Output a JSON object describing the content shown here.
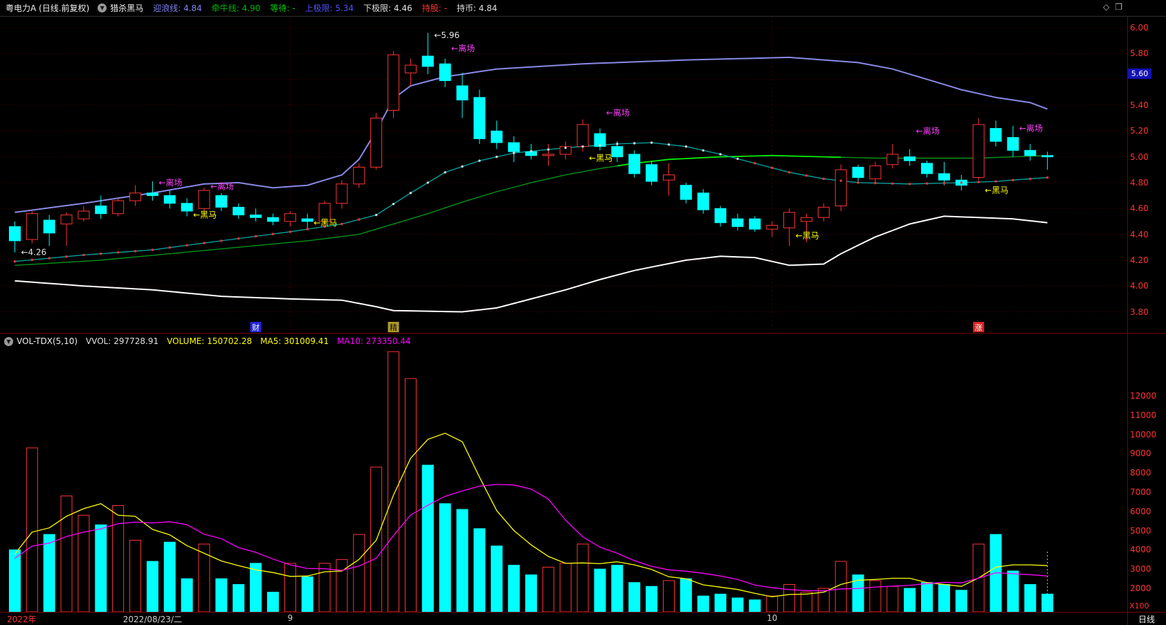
{
  "header": {
    "title": "粤电力A (日线.前复权)",
    "indicator": "猎杀黑马",
    "fields": [
      {
        "label": "迎浪线:",
        "value": "4.84",
        "color": "#8181f7"
      },
      {
        "label": "牵牛线:",
        "value": "4.90",
        "color": "#00b400"
      },
      {
        "label": "等待:",
        "value": "-",
        "color": "#00d000"
      },
      {
        "label": "上极限:",
        "value": "5.34",
        "color": "#5050ff"
      },
      {
        "label": "下极限:",
        "value": "4.46",
        "color": "#e0e0e0"
      },
      {
        "label": "持股:",
        "value": "-",
        "color": "#ff3434"
      },
      {
        "label": "持币:",
        "value": "4.84",
        "color": "#e0e0e0"
      }
    ],
    "window_icons": [
      "◇",
      "❐"
    ]
  },
  "main_chart": {
    "badge": "5.60",
    "price_ticks": [
      "6.00",
      "5.80",
      "5.60",
      "5.40",
      "5.20",
      "5.00",
      "4.80",
      "4.60",
      "4.40",
      "4.20",
      "4.00",
      "3.80"
    ]
  },
  "volume": {
    "label": "VOL-TDX(5,10)",
    "unit": "X100",
    "fields": [
      {
        "label": "VVOL:",
        "value": "297728.91",
        "color": "#e0e0e0"
      },
      {
        "label": "VOLUME:",
        "value": "150702.28",
        "color": "#ffff00"
      },
      {
        "label": "MA5:",
        "value": "301009.41",
        "color": "#ffff00"
      },
      {
        "label": "MA10:",
        "value": "273350.44",
        "color": "#ff00ff"
      }
    ],
    "volume_ticks": [
      "12000",
      "11000",
      "10000",
      "9000",
      "8000",
      "7000",
      "6000",
      "5000",
      "4000",
      "3000",
      "2000"
    ]
  },
  "bottom": {
    "date_labels": [
      {
        "text": "2022年",
        "i": 1,
        "color": "#ff3434",
        "align": "left"
      },
      {
        "text": "2022/08/23/二",
        "i": 9,
        "color": "#cfcfcf",
        "align": "center"
      },
      {
        "text": "9",
        "i": 17,
        "color": "#cfcfcf",
        "align": "center"
      },
      {
        "text": "10",
        "i": 45,
        "color": "#cfcfcf",
        "align": "center"
      }
    ],
    "period": "日线"
  },
  "chart_data": {
    "type": "candlestick+volume",
    "ohlcv_columns": [
      "open",
      "high",
      "low",
      "close",
      "volume_x100"
    ],
    "candles": [
      [
        4.46,
        4.5,
        4.26,
        4.35,
        4000
      ],
      [
        4.36,
        4.58,
        4.33,
        4.56,
        9300
      ],
      [
        4.51,
        4.55,
        4.31,
        4.41,
        4800
      ],
      [
        4.48,
        4.57,
        4.31,
        4.55,
        6800
      ],
      [
        4.52,
        4.62,
        4.5,
        4.58,
        5800
      ],
      [
        4.62,
        4.7,
        4.52,
        4.56,
        5300
      ],
      [
        4.56,
        4.68,
        4.54,
        4.66,
        6300
      ],
      [
        4.66,
        4.78,
        4.62,
        4.72,
        4500
      ],
      [
        4.72,
        4.81,
        4.66,
        4.7,
        3400
      ],
      [
        4.7,
        4.74,
        4.6,
        4.64,
        4400
      ],
      [
        4.64,
        4.68,
        4.54,
        4.58,
        2500
      ],
      [
        4.6,
        4.76,
        4.56,
        4.74,
        4300
      ],
      [
        4.7,
        4.72,
        4.58,
        4.61,
        2500
      ],
      [
        4.61,
        4.64,
        4.52,
        4.55,
        2200
      ],
      [
        4.55,
        4.6,
        4.5,
        4.53,
        3300
      ],
      [
        4.53,
        4.56,
        4.47,
        4.5,
        1800
      ],
      [
        4.5,
        4.58,
        4.46,
        4.56,
        3300
      ],
      [
        4.52,
        4.56,
        4.44,
        4.5,
        2600
      ],
      [
        4.5,
        4.66,
        4.48,
        4.64,
        3300
      ],
      [
        4.64,
        4.82,
        4.6,
        4.79,
        3500
      ],
      [
        4.79,
        4.95,
        4.76,
        4.92,
        4800
      ],
      [
        4.92,
        5.34,
        4.9,
        5.3,
        8300
      ],
      [
        5.36,
        5.82,
        5.3,
        5.79,
        14300
      ],
      [
        5.65,
        5.76,
        5.55,
        5.71,
        12900
      ],
      [
        5.78,
        5.96,
        5.64,
        5.7,
        8400
      ],
      [
        5.72,
        5.76,
        5.54,
        5.59,
        6400
      ],
      [
        5.55,
        5.65,
        5.3,
        5.44,
        6100
      ],
      [
        5.46,
        5.52,
        5.1,
        5.14,
        5100
      ],
      [
        5.2,
        5.28,
        5.06,
        5.11,
        4200
      ],
      [
        5.11,
        5.16,
        4.96,
        5.04,
        3200
      ],
      [
        5.04,
        5.1,
        4.98,
        5.01,
        2700
      ],
      [
        5.01,
        5.1,
        4.93,
        5.02,
        3100
      ],
      [
        5.02,
        5.12,
        4.98,
        5.08,
        3300
      ],
      [
        5.08,
        5.29,
        5.04,
        5.25,
        4300
      ],
      [
        5.18,
        5.22,
        5.05,
        5.08,
        3000
      ],
      [
        5.08,
        5.12,
        4.96,
        5.0,
        3200
      ],
      [
        5.02,
        5.05,
        4.84,
        4.87,
        2300
      ],
      [
        4.94,
        4.97,
        4.78,
        4.81,
        2100
      ],
      [
        4.82,
        4.95,
        4.7,
        4.86,
        2400
      ],
      [
        4.78,
        4.8,
        4.64,
        4.67,
        2500
      ],
      [
        4.72,
        4.75,
        4.56,
        4.59,
        1600
      ],
      [
        4.6,
        4.62,
        4.46,
        4.49,
        1700
      ],
      [
        4.52,
        4.56,
        4.43,
        4.46,
        1500
      ],
      [
        4.52,
        4.54,
        4.42,
        4.44,
        1400
      ],
      [
        4.44,
        4.5,
        4.38,
        4.47,
        1600
      ],
      [
        4.45,
        4.6,
        4.31,
        4.57,
        2200
      ],
      [
        4.5,
        4.56,
        4.34,
        4.53,
        1800
      ],
      [
        4.53,
        4.64,
        4.5,
        4.61,
        2000
      ],
      [
        4.62,
        4.94,
        4.58,
        4.9,
        3400
      ],
      [
        4.92,
        4.94,
        4.81,
        4.84,
        2700
      ],
      [
        4.83,
        4.96,
        4.8,
        4.93,
        2400
      ],
      [
        4.94,
        5.1,
        4.91,
        5.02,
        2100
      ],
      [
        5.0,
        5.06,
        4.93,
        4.97,
        2000
      ],
      [
        4.95,
        4.97,
        4.84,
        4.87,
        2300
      ],
      [
        4.87,
        4.96,
        4.78,
        4.82,
        2200
      ],
      [
        4.82,
        4.86,
        4.74,
        4.78,
        1900
      ],
      [
        4.84,
        5.3,
        4.82,
        5.25,
        4300
      ],
      [
        5.22,
        5.28,
        5.08,
        5.12,
        4800
      ],
      [
        5.15,
        5.24,
        5.0,
        5.05,
        2900
      ],
      [
        5.05,
        5.1,
        4.97,
        5.01,
        2200
      ],
      [
        5.01,
        5.04,
        4.9,
        5.0,
        1700
      ]
    ],
    "overlays": [
      {
        "name": "upper-band",
        "color": "#8a8ae8",
        "width": 2,
        "points": [
          [
            1,
            4.57
          ],
          [
            5,
            4.64
          ],
          [
            9,
            4.72
          ],
          [
            12,
            4.79
          ],
          [
            14,
            4.8
          ],
          [
            16,
            4.76
          ],
          [
            18,
            4.78
          ],
          [
            20,
            4.86
          ],
          [
            21,
            4.98
          ],
          [
            22,
            5.2
          ],
          [
            23,
            5.45
          ],
          [
            24,
            5.55
          ],
          [
            26,
            5.62
          ],
          [
            29,
            5.68
          ],
          [
            34,
            5.72
          ],
          [
            40,
            5.75
          ],
          [
            46,
            5.77
          ],
          [
            50,
            5.73
          ],
          [
            52,
            5.68
          ],
          [
            54,
            5.6
          ],
          [
            56,
            5.52
          ],
          [
            58,
            5.46
          ],
          [
            60,
            5.42
          ],
          [
            61,
            5.37
          ]
        ]
      },
      {
        "name": "lower-band",
        "color": "#ffffff",
        "width": 2,
        "points": [
          [
            1,
            4.04
          ],
          [
            5,
            4.0
          ],
          [
            9,
            3.97
          ],
          [
            13,
            3.92
          ],
          [
            17,
            3.9
          ],
          [
            20,
            3.89
          ],
          [
            22,
            3.84
          ],
          [
            23,
            3.81
          ],
          [
            27,
            3.8
          ],
          [
            29,
            3.83
          ],
          [
            31,
            3.9
          ],
          [
            33,
            3.97
          ],
          [
            35,
            4.05
          ],
          [
            37,
            4.12
          ],
          [
            40,
            4.2
          ],
          [
            42,
            4.23
          ],
          [
            44,
            4.22
          ],
          [
            46,
            4.16
          ],
          [
            48,
            4.17
          ],
          [
            49,
            4.25
          ],
          [
            51,
            4.38
          ],
          [
            53,
            4.48
          ],
          [
            55,
            4.54
          ],
          [
            57,
            4.53
          ],
          [
            59,
            4.52
          ],
          [
            61,
            4.49
          ]
        ]
      },
      {
        "name": "slow-line",
        "color": "#009418",
        "width": 1.4,
        "segments": [
          {
            "from": 36,
            "to": 49,
            "color": "#00ee00"
          }
        ],
        "points": [
          [
            1,
            4.16
          ],
          [
            6,
            4.2
          ],
          [
            10,
            4.25
          ],
          [
            14,
            4.3
          ],
          [
            18,
            4.35
          ],
          [
            21,
            4.4
          ],
          [
            23,
            4.48
          ],
          [
            25,
            4.56
          ],
          [
            27,
            4.65
          ],
          [
            29,
            4.73
          ],
          [
            31,
            4.8
          ],
          [
            33,
            4.86
          ],
          [
            35,
            4.91
          ],
          [
            37,
            4.95
          ],
          [
            39,
            4.98
          ],
          [
            42,
            5.0
          ],
          [
            45,
            5.01
          ],
          [
            48,
            5.0
          ],
          [
            51,
            4.99
          ],
          [
            54,
            4.99
          ],
          [
            57,
            4.99
          ],
          [
            61,
            5.01
          ]
        ]
      },
      {
        "name": "bull-line",
        "color": "#00a8a8",
        "width": 1.3,
        "points": [
          [
            1,
            4.19
          ],
          [
            5,
            4.24
          ],
          [
            9,
            4.28
          ],
          [
            13,
            4.35
          ],
          [
            17,
            4.42
          ],
          [
            20,
            4.48
          ],
          [
            22,
            4.55
          ],
          [
            24,
            4.72
          ],
          [
            26,
            4.88
          ],
          [
            28,
            4.97
          ],
          [
            30,
            5.03
          ],
          [
            33,
            5.07
          ],
          [
            36,
            5.1
          ],
          [
            38,
            5.11
          ],
          [
            40,
            5.08
          ],
          [
            42,
            5.02
          ],
          [
            44,
            4.95
          ],
          [
            46,
            4.88
          ],
          [
            48,
            4.83
          ],
          [
            50,
            4.8
          ],
          [
            53,
            4.79
          ],
          [
            56,
            4.8
          ],
          [
            58,
            4.81
          ],
          [
            61,
            4.84
          ]
        ]
      }
    ],
    "dots": {
      "on": "bull-line",
      "red_color": "#ff3434",
      "white_color": "#d8d8d8",
      "red_ranges": [
        [
          1,
          21
        ],
        [
          44,
          61
        ]
      ]
    },
    "annotations": [
      {
        "i": 1,
        "p": 4.26,
        "text": "←4.26",
        "color": "#e8e8e8"
      },
      {
        "i": 9,
        "p": 4.8,
        "text": "←离场",
        "color": "#ff40ff"
      },
      {
        "i": 12,
        "p": 4.77,
        "text": "←离场",
        "color": "#ff40ff"
      },
      {
        "i": 11,
        "p": 4.55,
        "text": "←黑马",
        "color": "#ffff00"
      },
      {
        "i": 18,
        "p": 4.49,
        "text": "←黑马",
        "color": "#ffff00"
      },
      {
        "i": 25,
        "p": 5.94,
        "text": "←5.96",
        "color": "#e8e8e8"
      },
      {
        "i": 26,
        "p": 5.84,
        "text": "←离场",
        "color": "#ff40ff"
      },
      {
        "i": 35,
        "p": 5.34,
        "text": "←离场",
        "color": "#ff40ff"
      },
      {
        "i": 34,
        "p": 4.99,
        "text": "←黑马",
        "color": "#ffff00"
      },
      {
        "i": 46,
        "p": 4.39,
        "text": "←黑马",
        "color": "#ffff00"
      },
      {
        "i": 53,
        "p": 5.2,
        "text": "←离场",
        "color": "#ff40ff"
      },
      {
        "i": 57,
        "p": 4.74,
        "text": "←黑马",
        "color": "#ffff00"
      },
      {
        "i": 59,
        "p": 5.22,
        "text": "←离场",
        "color": "#ff40ff"
      }
    ],
    "chips": [
      {
        "i": 15,
        "text": "财",
        "bg": "#2424d8",
        "fg": "#ffffff"
      },
      {
        "i": 23,
        "text": "精",
        "bg": "#b09a28",
        "fg": "#101010"
      },
      {
        "i": 57,
        "text": "涨",
        "bg": "#d42424",
        "fg": "#ffffff"
      }
    ],
    "month_gridlines": [
      17,
      45
    ],
    "cursor_index": 61,
    "ma_seed_volumes": [
      3000,
      3200,
      3400,
      3500,
      3600,
      3600,
      3700,
      3800,
      3800
    ],
    "vol_ma": [
      {
        "name": "MA5",
        "period": 5,
        "color": "#ffff00"
      },
      {
        "name": "MA10",
        "period": 10,
        "color": "#ff00ff"
      }
    ],
    "colors": {
      "up": "#ff3434",
      "down": "#00ffff",
      "grid": "#4a0000"
    }
  }
}
